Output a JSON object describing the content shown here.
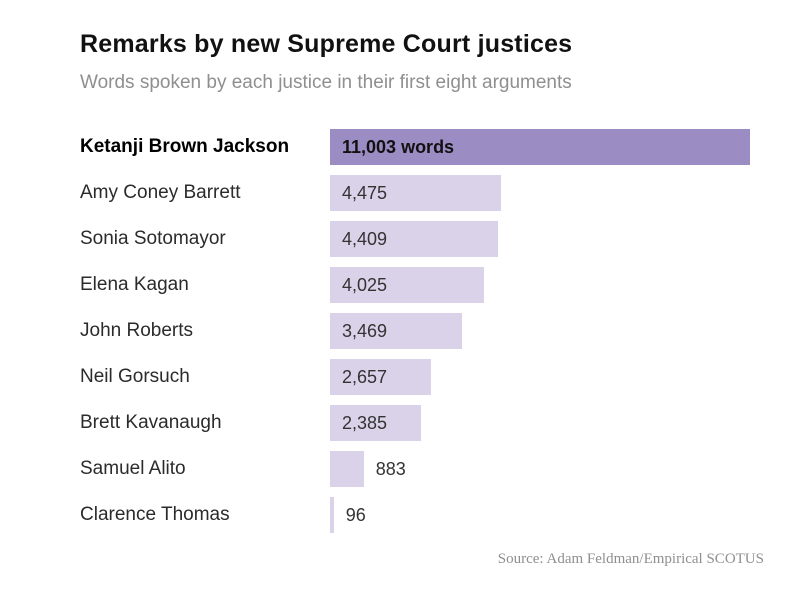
{
  "header": {
    "title": "Remarks by new Supreme Court justices",
    "subtitle": "Words spoken by each justice in their first eight arguments"
  },
  "footer": {
    "source": "Source: Adam Feldman/Empirical SCOTUS"
  },
  "colors": {
    "bar_highlight": "#9b8cc4",
    "bar_light": "#d9d2e9",
    "title_color": "#111111",
    "subtitle_color": "#8f8f8f"
  },
  "chart_data": {
    "type": "bar",
    "orientation": "horizontal",
    "title": "Remarks by new Supreme Court justices",
    "subtitle": "Words spoken by each justice in their first eight arguments",
    "xlabel": "",
    "ylabel": "",
    "xlim": [
      0,
      11003
    ],
    "grid": false,
    "legend": false,
    "source": "Source: Adam Feldman/Empirical SCOTUS",
    "highlight_index": 0,
    "categories": [
      "Ketanji Brown Jackson",
      "Amy Coney Barrett",
      "Sonia Sotomayor",
      "Elena Kagan",
      "John Roberts",
      "Neil Gorsuch",
      "Brett Kavanaugh",
      "Samuel Alito",
      "Clarence Thomas"
    ],
    "values": [
      11003,
      4475,
      4409,
      4025,
      3469,
      2657,
      2385,
      883,
      96
    ],
    "value_labels": [
      "11,003 words",
      "4,475",
      "4,409",
      "4,025",
      "3,469",
      "2,657",
      "2,385",
      "883",
      "96"
    ],
    "rows": [
      {
        "name": "Ketanji Brown Jackson",
        "value": 11003,
        "label": "11,003 words",
        "highlight": true,
        "label_position": "inside"
      },
      {
        "name": "Amy Coney Barrett",
        "value": 4475,
        "label": "4,475",
        "highlight": false,
        "label_position": "inside"
      },
      {
        "name": "Sonia Sotomayor",
        "value": 4409,
        "label": "4,409",
        "highlight": false,
        "label_position": "inside"
      },
      {
        "name": "Elena Kagan",
        "value": 4025,
        "label": "4,025",
        "highlight": false,
        "label_position": "inside"
      },
      {
        "name": "John Roberts",
        "value": 3469,
        "label": "3,469",
        "highlight": false,
        "label_position": "inside"
      },
      {
        "name": "Neil Gorsuch",
        "value": 2657,
        "label": "2,657",
        "highlight": false,
        "label_position": "inside"
      },
      {
        "name": "Brett Kavanaugh",
        "value": 2385,
        "label": "2,385",
        "highlight": false,
        "label_position": "inside"
      },
      {
        "name": "Samuel Alito",
        "value": 883,
        "label": "883",
        "highlight": false,
        "label_position": "outside"
      },
      {
        "name": "Clarence Thomas",
        "value": 96,
        "label": "96",
        "highlight": false,
        "label_position": "outside"
      }
    ]
  }
}
